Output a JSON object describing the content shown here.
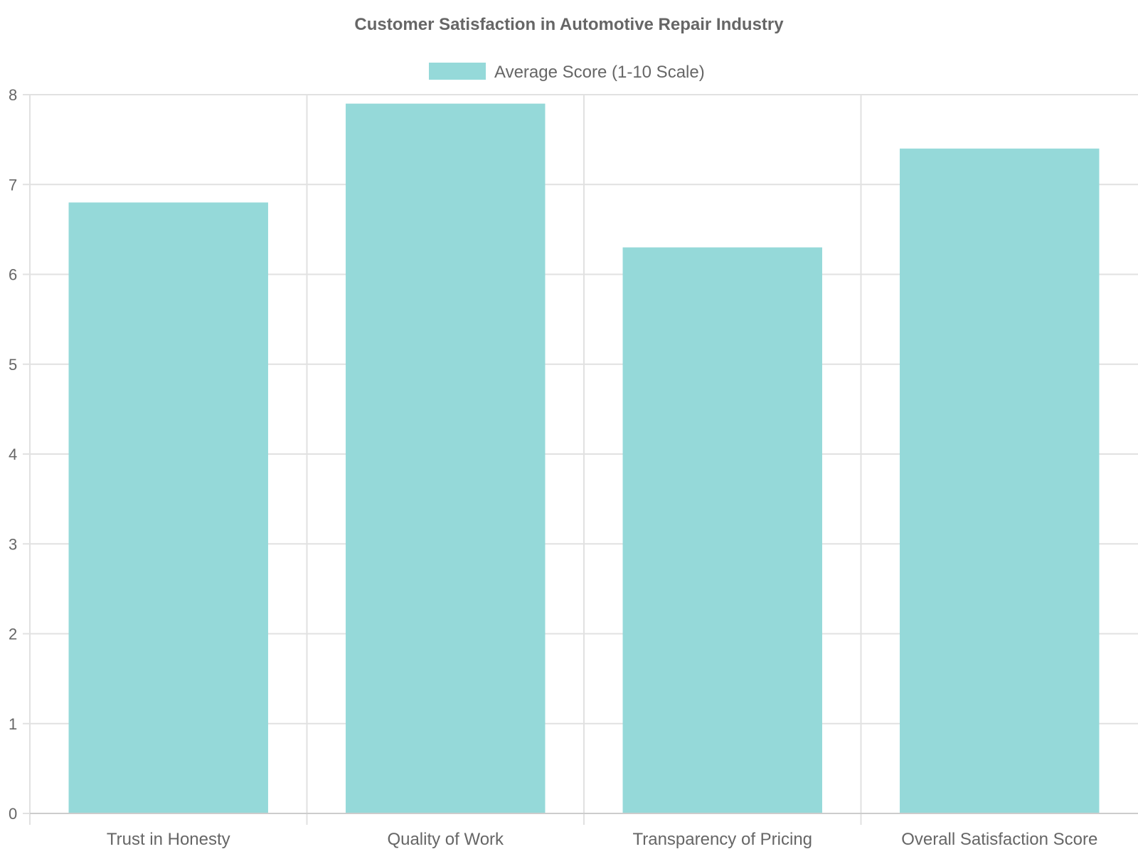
{
  "chart_data": {
    "type": "bar",
    "title": "Customer Satisfaction in Automotive Repair Industry",
    "categories": [
      "Trust in Honesty",
      "Quality of Work",
      "Transparency of Pricing",
      "Overall Satisfaction Score"
    ],
    "series": [
      {
        "name": "Average Score (1-10 Scale)",
        "values": [
          6.8,
          7.9,
          6.3,
          7.4
        ],
        "color": "#4bc0c0"
      }
    ],
    "ylim": [
      0,
      8
    ],
    "yticks": [
      "0",
      "1",
      "2",
      "3",
      "4",
      "5",
      "6",
      "7",
      "8"
    ],
    "grid": true,
    "legend_position": "top-center",
    "bar_fill": "#95d9d9",
    "text_color": "#666666",
    "grid_color": "#e1e1e1"
  }
}
